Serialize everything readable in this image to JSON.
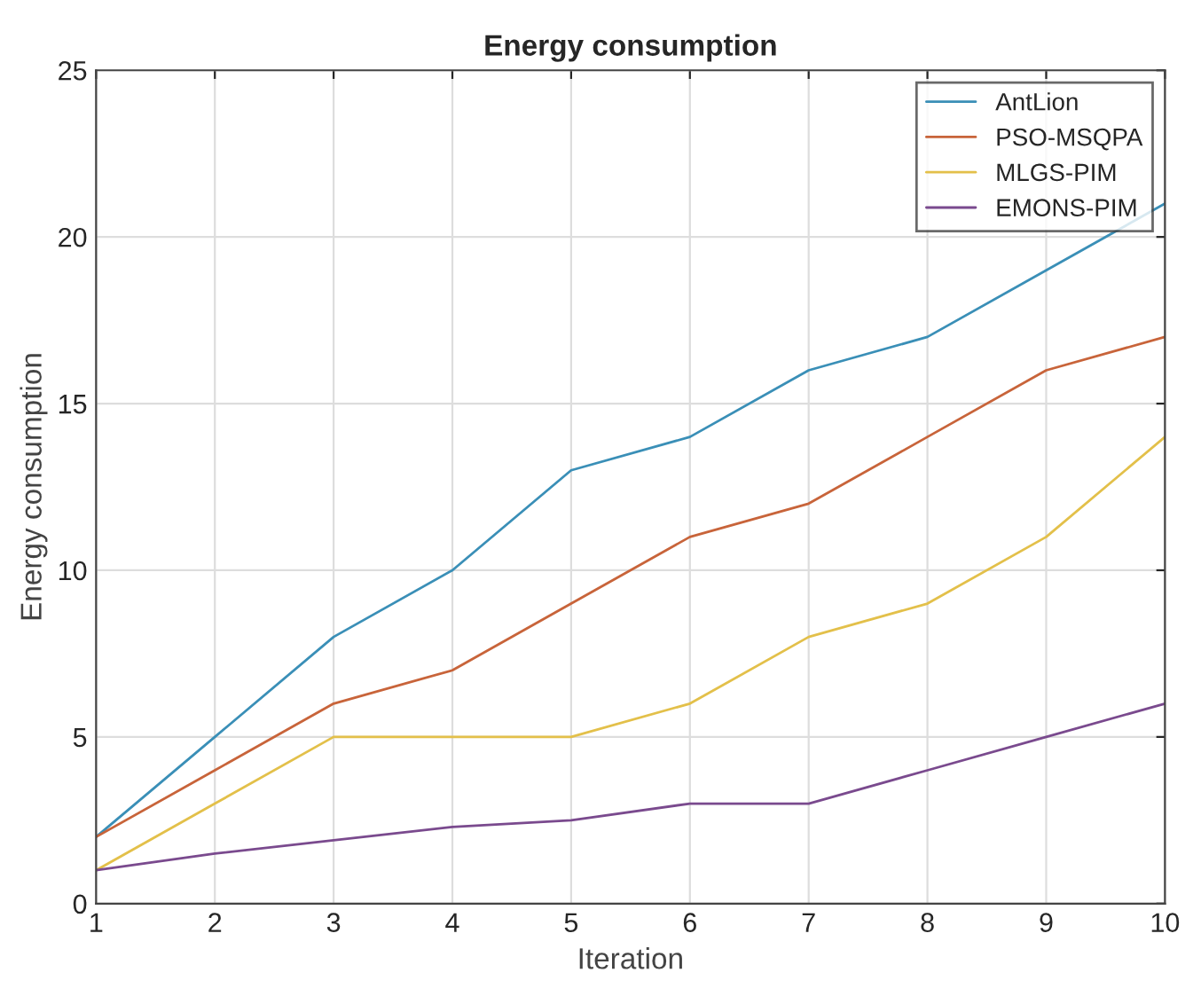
{
  "chart_data": {
    "type": "line",
    "title": "Energy consumption",
    "xlabel": "Iteration",
    "ylabel": "Energy consumption",
    "x": [
      1,
      2,
      3,
      4,
      5,
      6,
      7,
      8,
      9,
      10
    ],
    "series": [
      {
        "name": "AntLion",
        "color": "#3a8fb7",
        "values": [
          2,
          5,
          8,
          10,
          13,
          14,
          16,
          17,
          19,
          21
        ]
      },
      {
        "name": "PSO-MSQPA",
        "color": "#c8643a",
        "values": [
          2,
          4,
          6,
          7,
          9,
          11,
          12,
          14,
          16,
          17
        ]
      },
      {
        "name": "MLGS-PIM",
        "color": "#e3c04a",
        "values": [
          1,
          3,
          5,
          5,
          5,
          6,
          8,
          9,
          11,
          14
        ]
      },
      {
        "name": "EMONS-PIM",
        "color": "#7a4a8e",
        "values": [
          1,
          1.5,
          1.9,
          2.3,
          2.5,
          3,
          3,
          4,
          5,
          6
        ]
      }
    ],
    "xlim": [
      1,
      10
    ],
    "xticks": [
      1,
      2,
      3,
      4,
      5,
      6,
      7,
      8,
      9,
      10
    ],
    "ylim": [
      0,
      25
    ],
    "yticks": [
      0,
      5,
      10,
      15,
      20,
      25
    ],
    "grid": true,
    "legend": "top right",
    "marker": "none",
    "line_style": "solid"
  }
}
